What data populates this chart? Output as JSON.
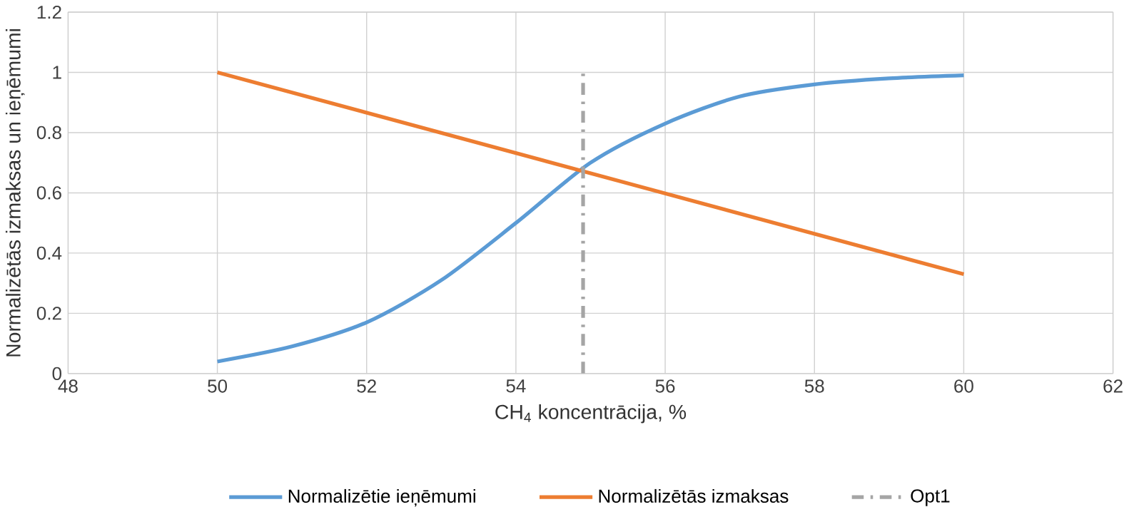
{
  "chart_data": {
    "type": "line",
    "xlabel": "CH$_{4}$ koncentrācija, %",
    "ylabel": "Normalizētās izmaksas un ieņēmumi",
    "xlim": [
      48,
      62
    ],
    "xticks": [
      48,
      50,
      52,
      54,
      56,
      58,
      60,
      62
    ],
    "ylim": [
      0,
      1.2
    ],
    "yticks": [
      0,
      0.2,
      0.4,
      0.6,
      0.8,
      1,
      1.2
    ],
    "grid": true,
    "legend": "bottom",
    "marker": "none",
    "series": [
      {
        "name": "Normalizētie ieņēmumi",
        "color": "#5b9bd5",
        "x": [
          50,
          51,
          52,
          53,
          54,
          55,
          56,
          57,
          58,
          59,
          60
        ],
        "values": [
          0.04,
          0.09,
          0.17,
          0.31,
          0.5,
          0.7,
          0.83,
          0.92,
          0.96,
          0.98,
          0.99
        ],
        "line_style": "solid"
      },
      {
        "name": "Normalizētās izmaksas",
        "color": "#ed7d31",
        "x": [
          50,
          60
        ],
        "values": [
          1,
          0.33
        ],
        "line_style": "solid"
      },
      {
        "name": "Opt1",
        "color": "#a5a5a5",
        "x": [
          54.9,
          54.9
        ],
        "values": [
          0,
          1
        ],
        "line_style": "dashdot"
      }
    ]
  }
}
